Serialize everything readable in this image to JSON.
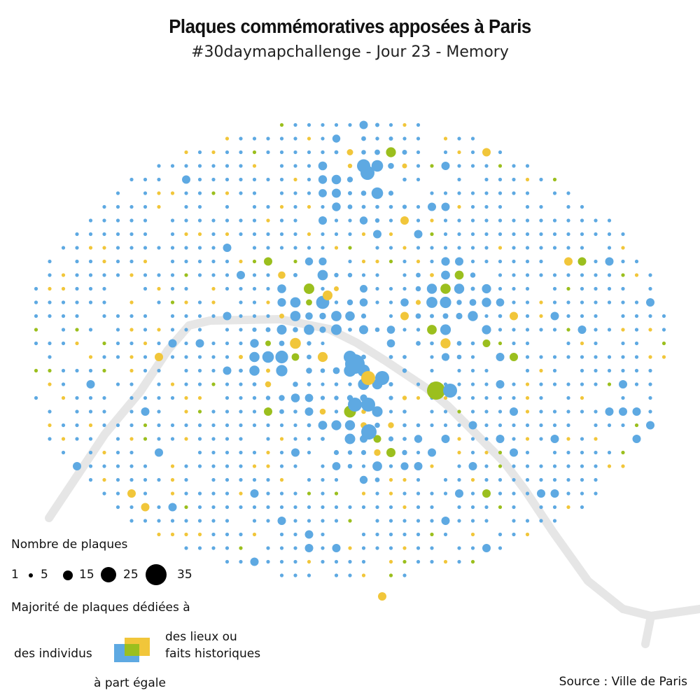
{
  "header": {
    "title": "Plaques commémoratives apposées à Paris",
    "subtitle": "#30daymapchallenge - Jour 23 - Memory"
  },
  "legend": {
    "size_title": "Nombre de plaques",
    "size_values": [
      "1",
      "5",
      "15",
      "25",
      "35"
    ],
    "category_title": "Majorité de plaques dédiées à",
    "categories": {
      "individuals": "des individus",
      "places_line1": "des lieux ou",
      "places_line2": "faits historiques",
      "equal": "à part égale"
    }
  },
  "source": "Source : Ville de Paris",
  "colors": {
    "individuals": "#5ea9e2",
    "places": "#f1c63a",
    "equal": "#9bbf1e",
    "seine": "#e6e6e6"
  },
  "map_data": {
    "description_units": "dots on a regular grid of cells covering Paris; each dot sized by number of plaques, colored by majority category",
    "notable_cells": [
      {
        "category": "individuals",
        "plaques": 35
      },
      {
        "category": "individuals",
        "plaques": 25
      },
      {
        "category": "equal",
        "plaques": 25
      },
      {
        "category": "places",
        "plaques": 15
      }
    ]
  }
}
